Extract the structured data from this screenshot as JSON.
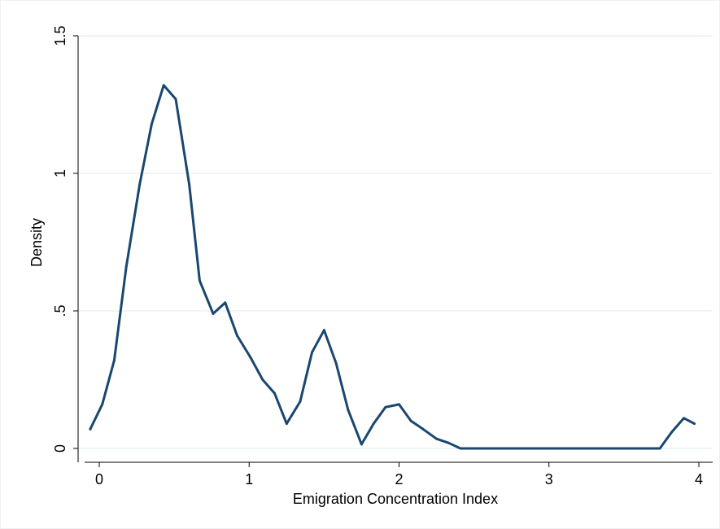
{
  "chart_data": {
    "type": "line",
    "title": "",
    "xlabel": "Emigration Concentration Index",
    "ylabel": "Density",
    "xlim": [
      -0.1,
      4.0
    ],
    "ylim": [
      0,
      1.5
    ],
    "x_ticks": [
      {
        "value": 0,
        "label": "0"
      },
      {
        "value": 1,
        "label": "1"
      },
      {
        "value": 2,
        "label": "2"
      },
      {
        "value": 3,
        "label": "3"
      },
      {
        "value": 4,
        "label": "4"
      }
    ],
    "y_ticks": [
      {
        "value": 0,
        "label": "0"
      },
      {
        "value": 0.5,
        "label": ".5"
      },
      {
        "value": 1,
        "label": "1"
      },
      {
        "value": 1.5,
        "label": "1.5"
      }
    ],
    "grid": "horizontal",
    "legend": "none",
    "colors": {
      "line": "#1a476f",
      "grid": "#eaf2f3",
      "axis": "#000000",
      "background": "#ffffff"
    },
    "series": [
      {
        "x": [
          -0.06,
          0.02,
          0.1,
          0.18,
          0.27,
          0.35,
          0.43,
          0.51,
          0.6,
          0.67,
          0.76,
          0.84,
          0.92,
          1.01,
          1.09,
          1.17,
          1.25,
          1.34,
          1.42,
          1.5,
          1.58,
          1.66,
          1.75,
          1.83,
          1.91,
          2.0,
          2.08,
          2.16,
          2.25,
          2.33,
          2.41,
          2.5,
          3.74,
          3.82,
          3.9,
          3.97
        ],
        "y": [
          0.07,
          0.16,
          0.32,
          0.66,
          0.96,
          1.18,
          1.32,
          1.27,
          0.96,
          0.61,
          0.49,
          0.53,
          0.41,
          0.33,
          0.25,
          0.2,
          0.09,
          0.17,
          0.35,
          0.43,
          0.31,
          0.14,
          0.015,
          0.09,
          0.15,
          0.16,
          0.1,
          0.07,
          0.035,
          0.02,
          0.0,
          0.0,
          0.0,
          0.06,
          0.11,
          0.09
        ]
      }
    ]
  }
}
